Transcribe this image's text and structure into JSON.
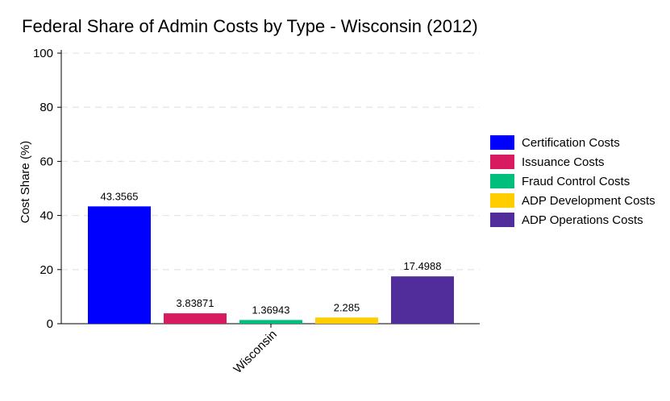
{
  "chart_data": {
    "type": "bar",
    "title": "Federal Share of Admin Costs by Type - Wisconsin (2012)",
    "xlabel": "",
    "ylabel": "Cost Share (%)",
    "ylim": [
      0,
      100
    ],
    "yticks": [
      0,
      20,
      40,
      60,
      80,
      100
    ],
    "categories": [
      "Wisconsin"
    ],
    "grid": "horizontal dashed",
    "legend_position": "right",
    "series": [
      {
        "name": "Certification Costs",
        "values": [
          43.3565
        ],
        "label": "43.3565",
        "color": "#0000ff"
      },
      {
        "name": "Issuance Costs",
        "values": [
          3.83871
        ],
        "label": "3.83871",
        "color": "#d81b60"
      },
      {
        "name": "Fraud Control Costs",
        "values": [
          1.36943
        ],
        "label": "1.36943",
        "color": "#00bf7d"
      },
      {
        "name": "ADP Development Costs",
        "values": [
          2.285
        ],
        "label": "2.285",
        "color": "#ffcd00"
      },
      {
        "name": "ADP Operations Costs",
        "values": [
          17.4988
        ],
        "label": "17.4988",
        "color": "#512d9c"
      }
    ]
  }
}
